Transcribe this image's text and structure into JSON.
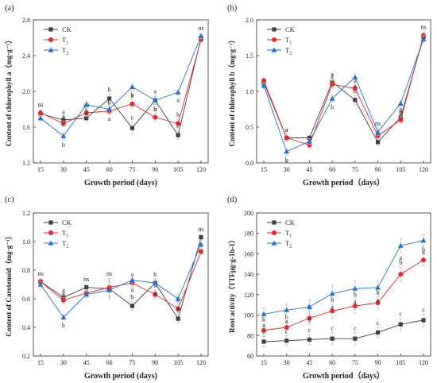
{
  "colors": {
    "CK": "#404040",
    "T1": "#e8262b",
    "T2": "#1f6fd6"
  },
  "chart_data": [
    {
      "type": "line",
      "panel_label": "(a)",
      "ylabel": "Content of chlorophyll a（mg·g⁻¹）",
      "xlabel": "Growth period (days)",
      "x": [
        15,
        30,
        45,
        60,
        75,
        90,
        105,
        120
      ],
      "ylim": [
        1.2,
        2.8
      ],
      "yticks": [
        1.2,
        1.6,
        2.0,
        2.4,
        2.8
      ],
      "ytick_labels": [
        "1.2",
        "1.6",
        "2.0",
        "2.4",
        "2.8"
      ],
      "legend": {
        "placement": "top-left",
        "labels": [
          "CK",
          "T",
          "T"
        ],
        "subscripts": [
          "",
          "1",
          "2"
        ]
      },
      "series": [
        {
          "key": "CK",
          "values": [
            1.75,
            1.68,
            1.7,
            1.92,
            1.59,
            1.9,
            1.51,
            2.6
          ],
          "errors": [
            0.04,
            0.04,
            0.04,
            0.05,
            0.07,
            0.05,
            0.05,
            0.03
          ],
          "letters": [
            "ns",
            "a",
            "b",
            "b",
            "c",
            "a",
            "c",
            "ns"
          ]
        },
        {
          "key": "T1",
          "values": [
            1.76,
            1.64,
            1.76,
            1.78,
            1.86,
            1.71,
            1.64,
            2.58
          ],
          "errors": [
            0.03,
            0.03,
            0.04,
            0.04,
            0.05,
            0.04,
            0.05,
            0.03
          ],
          "letters": [
            "",
            "a",
            "ab",
            "b",
            "b",
            "b",
            "b",
            ""
          ]
        },
        {
          "key": "T2",
          "values": [
            1.7,
            1.5,
            1.85,
            1.8,
            2.05,
            1.9,
            1.99,
            2.62
          ],
          "errors": [
            0.03,
            0.04,
            0.04,
            0.05,
            0.04,
            0.04,
            0.03,
            0.03
          ],
          "letters": [
            "",
            "b",
            "a",
            "a",
            "a",
            "a",
            "a",
            ""
          ]
        }
      ]
    },
    {
      "type": "line",
      "panel_label": "(b)",
      "ylabel": "Content of chlorophyll b（mg·g⁻¹）",
      "xlabel": "Growth period（days）",
      "x": [
        15,
        30,
        45,
        60,
        75,
        90,
        105,
        120
      ],
      "ylim": [
        0.0,
        2.0
      ],
      "yticks": [
        0.0,
        0.5,
        1.0,
        1.5,
        2.0
      ],
      "ytick_labels": [
        "0.0",
        "0.5",
        "1.0",
        "1.5",
        "2.0"
      ],
      "legend": {
        "placement": "top-left",
        "labels": [
          "CK",
          "T",
          "T"
        ],
        "subscripts": [
          "",
          "1",
          "2"
        ]
      },
      "series": [
        {
          "key": "CK",
          "values": [
            1.12,
            0.35,
            0.35,
            1.13,
            0.88,
            0.29,
            0.64,
            1.76
          ],
          "errors": [
            0.04,
            0.05,
            0.04,
            0.05,
            0.06,
            0.05,
            0.05,
            0.05
          ],
          "letters": [
            "",
            "a",
            "",
            "a",
            "b",
            "",
            "a",
            "ns"
          ]
        },
        {
          "key": "T1",
          "values": [
            1.15,
            0.35,
            0.25,
            1.1,
            1.04,
            0.38,
            0.6,
            1.78
          ],
          "errors": [
            0.04,
            0.05,
            0.04,
            0.05,
            0.05,
            0.05,
            0.05,
            0.05
          ],
          "letters": [
            "",
            "a",
            "",
            "a",
            "a",
            "ns",
            "b",
            ""
          ]
        },
        {
          "key": "T2",
          "values": [
            1.08,
            0.16,
            0.3,
            0.9,
            1.2,
            0.43,
            0.83,
            1.73
          ],
          "errors": [
            0.04,
            0.05,
            0.04,
            0.05,
            0.05,
            0.05,
            0.05,
            0.05
          ],
          "letters": [
            "",
            "b",
            "",
            "b",
            "a",
            "",
            "a",
            ""
          ]
        }
      ]
    },
    {
      "type": "line",
      "panel_label": "(c)",
      "ylabel": "Content of Carotenoid（mg·g⁻¹）",
      "xlabel": "Growth period (days)",
      "x": [
        15,
        30,
        45,
        60,
        75,
        90,
        105,
        120
      ],
      "ylim": [
        0.2,
        1.2
      ],
      "yticks": [
        0.2,
        0.4,
        0.6,
        0.8,
        1.0,
        1.2
      ],
      "ytick_labels": [
        "0.2",
        "0.4",
        "0.6",
        "0.8",
        "1.0",
        "1.2"
      ],
      "legend": {
        "placement": "top-left",
        "labels": [
          "CK",
          "T",
          "T"
        ],
        "subscripts": [
          "",
          "1",
          "2"
        ]
      },
      "series": [
        {
          "key": "CK",
          "values": [
            0.72,
            0.61,
            0.68,
            0.67,
            0.55,
            0.71,
            0.46,
            1.03
          ],
          "errors": [
            0.02,
            0.02,
            0.02,
            0.06,
            0.03,
            0.03,
            0.03,
            0.02
          ],
          "letters": [
            "ns",
            "a",
            "ns",
            "ns",
            "b",
            "b",
            "c",
            "ns"
          ]
        },
        {
          "key": "T1",
          "values": [
            0.72,
            0.59,
            0.64,
            0.68,
            0.71,
            0.63,
            0.53,
            0.93
          ],
          "errors": [
            0.02,
            0.02,
            0.02,
            0.06,
            0.03,
            0.03,
            0.03,
            0.02
          ],
          "letters": [
            "",
            "a",
            "",
            "",
            "a",
            "b",
            "b",
            ""
          ]
        },
        {
          "key": "T2",
          "values": [
            0.7,
            0.47,
            0.63,
            0.66,
            0.73,
            0.71,
            0.6,
            0.98
          ],
          "errors": [
            0.02,
            0.02,
            0.02,
            0.06,
            0.03,
            0.03,
            0.03,
            0.02
          ],
          "letters": [
            "",
            "b",
            "",
            "",
            "a",
            "a",
            "a",
            ""
          ]
        }
      ]
    },
    {
      "type": "line",
      "panel_label": "(d)",
      "ylabel": "Root activity（TTFμg·g-1h-1）",
      "xlabel": "Growth period（days）",
      "x": [
        15,
        30,
        45,
        60,
        75,
        90,
        105,
        120
      ],
      "ylim": [
        60,
        200
      ],
      "yticks": [
        60,
        80,
        100,
        120,
        140,
        160,
        180,
        200
      ],
      "ytick_labels": [
        "60",
        "80",
        "100",
        "120",
        "140",
        "160",
        "180",
        "200"
      ],
      "legend": {
        "placement": "top-left",
        "labels": [
          "CK",
          "T",
          "T"
        ],
        "subscripts": [
          "",
          "1",
          "2"
        ]
      },
      "series": [
        {
          "key": "CK",
          "values": [
            74,
            75,
            76,
            77,
            77,
            83,
            91,
            95
          ],
          "errors": [
            5,
            5,
            5,
            6,
            6,
            5,
            6,
            6
          ],
          "letters": [
            "c",
            "c",
            "c",
            "c",
            "c",
            "c",
            "c",
            "c"
          ]
        },
        {
          "key": "T1",
          "values": [
            85,
            88,
            97,
            104,
            109,
            112,
            140,
            154
          ],
          "errors": [
            6,
            6,
            6,
            7,
            7,
            6,
            7,
            6
          ],
          "letters": [
            "b",
            "b",
            "b",
            "b",
            "b",
            "b",
            "b",
            "b"
          ]
        },
        {
          "key": "T2",
          "values": [
            101,
            105,
            108,
            121,
            126,
            127,
            168,
            173
          ],
          "errors": [
            6,
            6,
            7,
            8,
            8,
            7,
            7,
            6
          ],
          "letters": [
            "a",
            "a",
            "a",
            "a",
            "a",
            "a",
            "a",
            "a"
          ]
        }
      ]
    }
  ]
}
